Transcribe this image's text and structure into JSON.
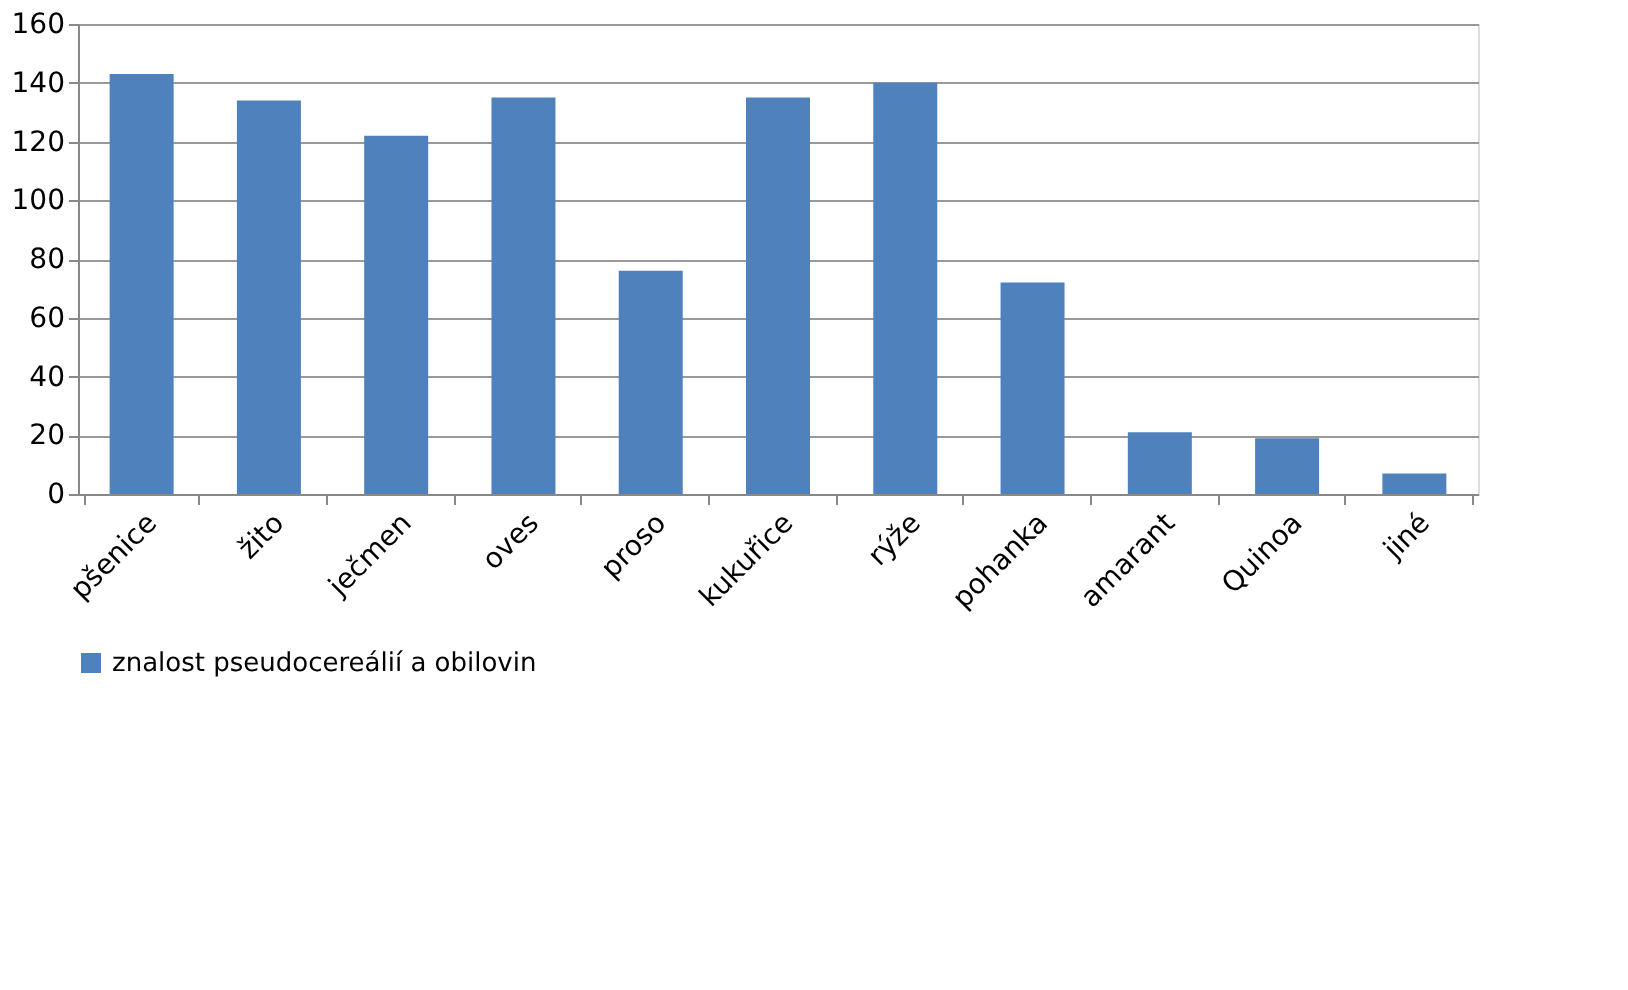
{
  "chart_data": {
    "type": "bar",
    "categories": [
      "pšenice",
      "žito",
      "ječmen",
      "oves",
      "proso",
      "kukuřice",
      "rýže",
      "pohanka",
      "amarant",
      "Quinoa",
      "jiné"
    ],
    "series": [
      {
        "name": "znalost pseudocereálií a obilovin",
        "color": "#4f81bd",
        "values": [
          143,
          134,
          122,
          135,
          76,
          135,
          140,
          72,
          21,
          19,
          7
        ]
      }
    ],
    "ylim": [
      0,
      160
    ],
    "yticks": [
      0,
      20,
      40,
      60,
      80,
      100,
      120,
      140,
      160
    ],
    "grid": "y",
    "legend": "bottom"
  }
}
